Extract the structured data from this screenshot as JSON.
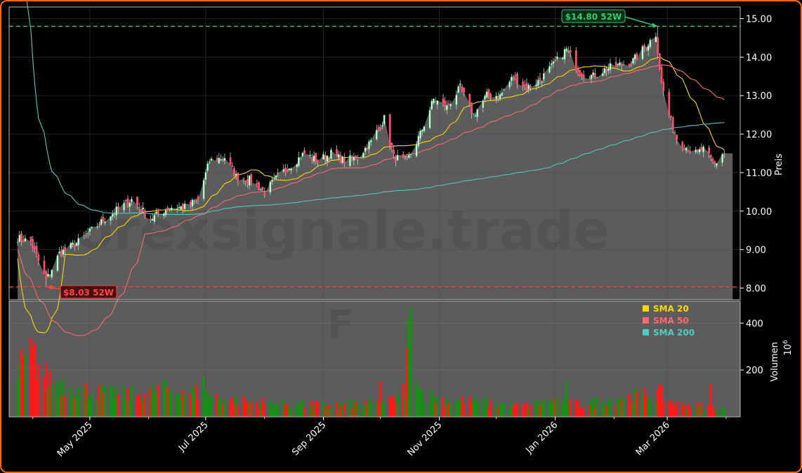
{
  "chart_data": [
    {
      "type": "candlestick",
      "ylabel": "Preis",
      "ylim": [
        7.7,
        15.3
      ],
      "yticks": [
        "8.00",
        "9.00",
        "10.00",
        "11.00",
        "12.00",
        "13.00",
        "14.00",
        "15.00"
      ],
      "xticks": [
        "May 2025",
        "Jul 2025",
        "Sep 2025",
        "Nov 2025",
        "Jan 2026",
        "Mar 2026"
      ],
      "close_anchors": {
        "x": [
          "2025-03-24",
          "2025-03-31",
          "2025-04-08",
          "2025-04-15",
          "2025-04-25",
          "2025-05-09",
          "2025-05-23",
          "2025-06-02",
          "2025-06-12",
          "2025-06-20",
          "2025-06-27",
          "2025-07-03",
          "2025-07-11",
          "2025-07-17",
          "2025-07-25",
          "2025-08-01",
          "2025-08-08",
          "2025-08-15",
          "2025-08-22",
          "2025-08-29",
          "2025-09-05",
          "2025-09-12",
          "2025-09-19",
          "2025-09-26",
          "2025-10-03",
          "2025-10-08",
          "2025-10-15",
          "2025-10-22",
          "2025-10-29",
          "2025-11-05",
          "2025-11-12",
          "2025-11-19",
          "2025-11-26",
          "2025-12-03",
          "2025-12-10",
          "2025-12-17",
          "2025-12-24",
          "2025-12-31",
          "2026-01-07",
          "2026-01-14",
          "2026-01-21",
          "2026-01-28",
          "2026-02-04",
          "2026-02-11",
          "2026-02-18",
          "2026-02-23",
          "2026-02-26",
          "2026-03-02",
          "2026-03-06",
          "2026-03-10",
          "2026-03-16",
          "2026-03-20",
          "2026-03-26",
          "2026-03-30"
        ],
        "close": [
          9.3,
          9.2,
          8.2,
          8.9,
          9.2,
          9.8,
          10.3,
          9.8,
          10.1,
          10.1,
          10.3,
          11.3,
          11.4,
          10.9,
          10.8,
          10.5,
          10.9,
          11.2,
          11.5,
          11.3,
          11.5,
          11.3,
          11.4,
          11.8,
          12.4,
          11.4,
          11.3,
          12.0,
          12.9,
          12.7,
          13.2,
          12.5,
          13.0,
          13.0,
          13.5,
          13.2,
          13.4,
          13.8,
          14.2,
          13.6,
          13.5,
          13.7,
          13.8,
          13.9,
          14.3,
          14.6,
          13.3,
          12.5,
          11.9,
          11.7,
          11.5,
          11.6,
          11.2,
          11.5
        ]
      },
      "high_52w": {
        "value": 14.8,
        "date": "2026-02-24",
        "label": "$14.80 52W"
      },
      "low_52w": {
        "value": 8.03,
        "date": "2025-04-08",
        "label": "$8.03 52W"
      },
      "series": [
        {
          "name": "SMA 20",
          "color": "#ffd700"
        },
        {
          "name": "SMA 50",
          "color": "#ff6b6b"
        },
        {
          "name": "SMA 200",
          "color": "#4ecdc4"
        }
      ],
      "colors": {
        "up": "#00c000",
        "down": "#ff4d6a",
        "area": "#5c5c5c",
        "grid": "#4a4a4a",
        "high": "#2ecc71",
        "low": "#ff4444"
      },
      "legend": "top-right",
      "grid": true,
      "watermark": "forexsignale.trade"
    },
    {
      "type": "bar",
      "ylabel": "Volumen",
      "yunit": "10^6",
      "yticks": [
        "200",
        "400"
      ],
      "ylim": [
        0,
        470
      ],
      "volume_anchors": {
        "x": [
          "2025-03-24",
          "2025-03-31",
          "2025-04-08",
          "2025-04-15",
          "2025-04-25",
          "2025-05-09",
          "2025-05-23",
          "2025-06-06",
          "2025-06-20",
          "2025-07-01",
          "2025-07-15",
          "2025-08-01",
          "2025-08-15",
          "2025-09-01",
          "2025-09-15",
          "2025-10-01",
          "2025-10-08",
          "2025-10-14",
          "2025-10-17",
          "2025-10-22",
          "2025-11-01",
          "2025-11-15",
          "2025-12-01",
          "2025-12-15",
          "2026-01-02",
          "2026-01-15",
          "2026-02-01",
          "2026-02-15",
          "2026-02-25",
          "2026-03-05",
          "2026-03-20",
          "2026-03-30"
        ],
        "volume": [
          190,
          270,
          170,
          150,
          120,
          100,
          95,
          110,
          115,
          95,
          70,
          60,
          55,
          50,
          55,
          60,
          70,
          120,
          450,
          110,
          75,
          70,
          55,
          45,
          75,
          50,
          80,
          90,
          100,
          55,
          45,
          35
        ]
      },
      "spikes": [
        {
          "date": "2025-10-17",
          "volume": 470
        },
        {
          "date": "2025-10-16",
          "volume": 420
        },
        {
          "date": "2025-10-15",
          "volume": 290
        },
        {
          "date": "2025-03-28",
          "volume": 265
        },
        {
          "date": "2025-06-30",
          "volume": 170
        },
        {
          "date": "2025-10-01",
          "volume": 150
        },
        {
          "date": "2026-01-07",
          "volume": 150
        },
        {
          "date": "2026-03-24",
          "volume": 140
        },
        {
          "date": "2025-06-09",
          "volume": 160
        }
      ]
    }
  ]
}
